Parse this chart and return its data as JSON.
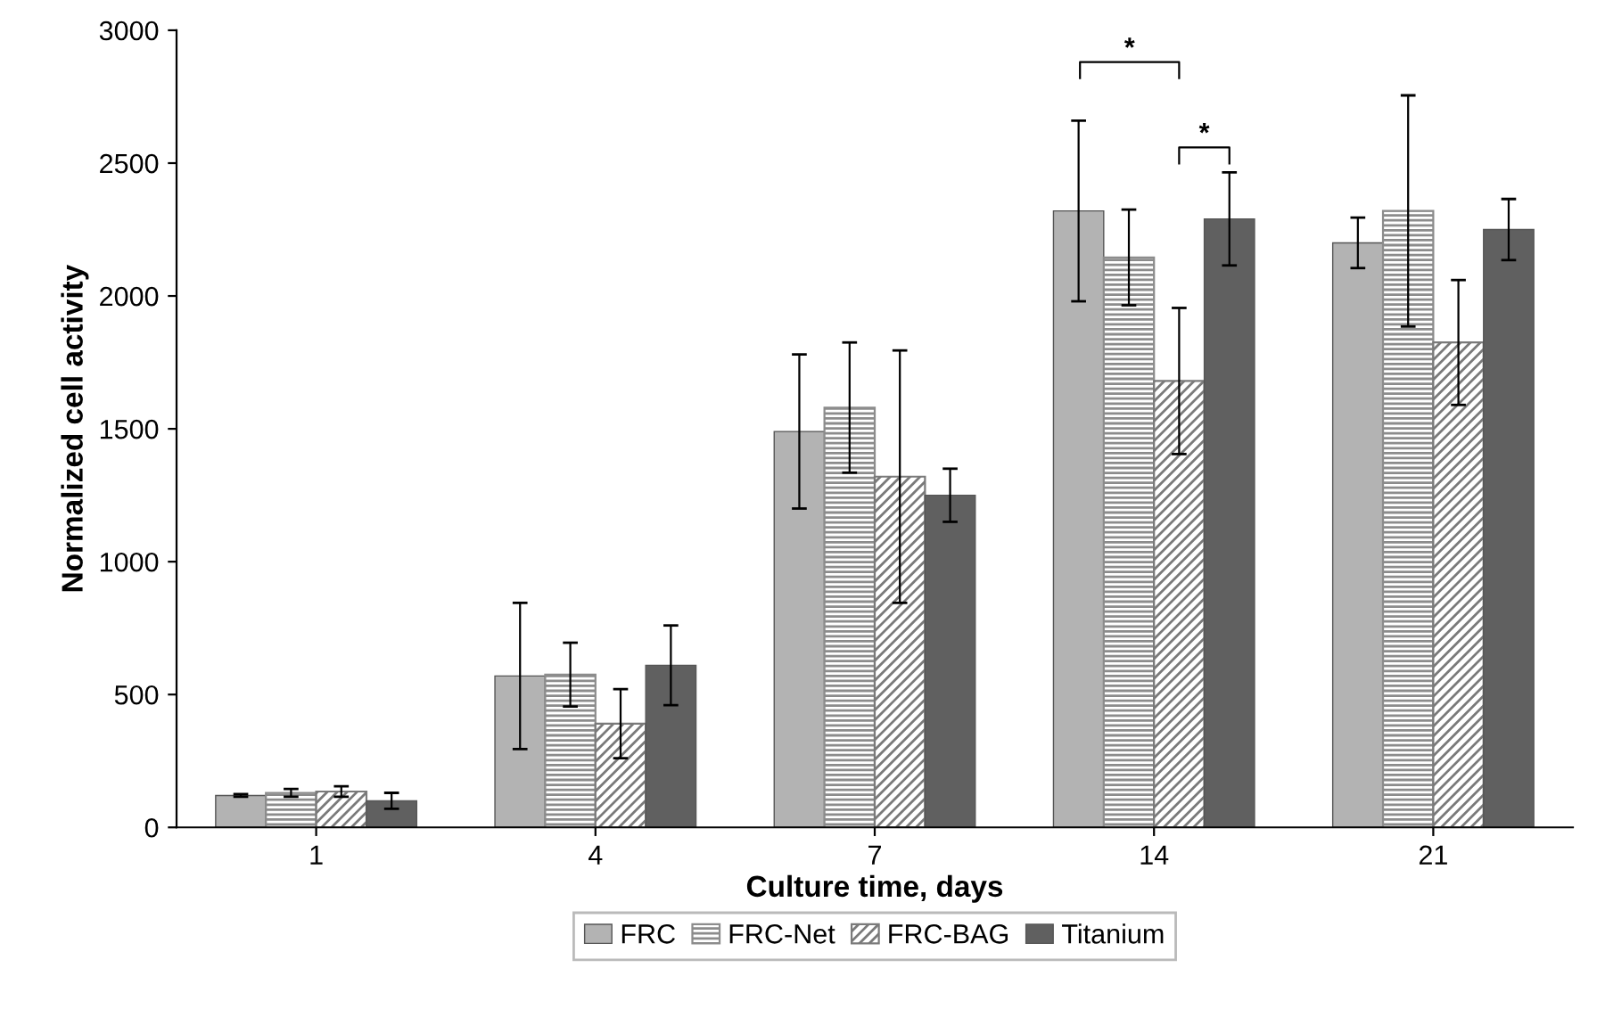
{
  "chart_data": {
    "type": "bar",
    "xlabel": "Culture time, days",
    "ylabel": "Normalized cell activity",
    "categories": [
      "1",
      "4",
      "7",
      "14",
      "21"
    ],
    "series": [
      {
        "name": "FRC",
        "color": "#b3b3b3",
        "values": [
          120,
          570,
          1490,
          2320,
          2200
        ],
        "errors": [
          5,
          275,
          290,
          340,
          95
        ]
      },
      {
        "name": "FRC-Net",
        "color": "#8c8c8c",
        "values": [
          130,
          575,
          1580,
          2145,
          2320
        ],
        "errors": [
          15,
          120,
          245,
          180,
          435
        ]
      },
      {
        "name": "FRC-BAG",
        "color": "#7a7a7a",
        "values": [
          135,
          390,
          1320,
          1680,
          1825
        ],
        "errors": [
          20,
          130,
          475,
          275,
          235
        ]
      },
      {
        "name": "Titanium",
        "color": "#606060",
        "values": [
          100,
          610,
          1250,
          2290,
          2250
        ],
        "errors": [
          30,
          150,
          100,
          175,
          115
        ]
      }
    ],
    "annotations": [
      "*",
      "*"
    ],
    "ylim": [
      0,
      3000
    ],
    "yticks": [
      0,
      500,
      1000,
      1500,
      2000,
      2500,
      3000
    ],
    "grid": false,
    "legend": "bottom"
  }
}
